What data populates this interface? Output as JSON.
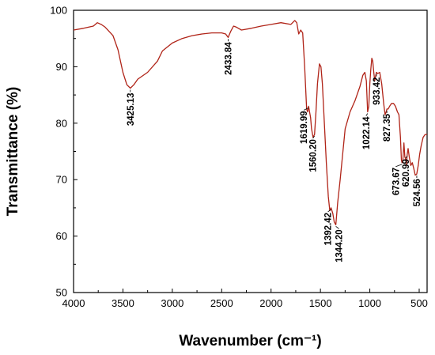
{
  "chart_data": {
    "type": "line",
    "xlabel": "Wavenumber (cm⁻¹)",
    "ylabel": "Transmittance (%)",
    "xlim": [
      4000,
      420
    ],
    "x_reversed": true,
    "ylim": [
      50,
      100
    ],
    "xticks": [
      "4000",
      "3500",
      "3000",
      "2500",
      "2000",
      "1500",
      "1000",
      "500"
    ],
    "yticks": [
      "50",
      "60",
      "70",
      "80",
      "90",
      "100"
    ],
    "grid": false,
    "line_color": "#b02418",
    "series": [
      {
        "x": [
          4000,
          3900,
          3800,
          3760,
          3720,
          3680,
          3600,
          3550,
          3500,
          3460,
          3425,
          3390,
          3350,
          3250,
          3150,
          3100,
          3000,
          2900,
          2800,
          2700,
          2600,
          2500,
          2460,
          2434,
          2410,
          2380,
          2350,
          2300,
          2200,
          2100,
          2000,
          1900,
          1800,
          1760,
          1740,
          1720,
          1700,
          1680,
          1660,
          1640,
          1630,
          1620,
          1610,
          1600,
          1590,
          1575,
          1560,
          1545,
          1530,
          1510,
          1495,
          1480,
          1460,
          1440,
          1420,
          1405,
          1392,
          1375,
          1360,
          1344,
          1325,
          1300,
          1250,
          1200,
          1150,
          1100,
          1070,
          1050,
          1035,
          1022,
          1010,
          1000,
          990,
          980,
          970,
          960,
          950,
          945,
          933,
          920,
          900,
          880,
          860,
          845,
          835,
          827,
          815,
          800,
          780,
          760,
          740,
          720,
          705,
          690,
          680,
          674,
          665,
          655,
          645,
          635,
          630,
          621,
          612,
          600,
          585,
          570,
          555,
          540,
          525,
          510,
          495,
          480,
          460,
          440,
          420
        ],
        "y": [
          96.5,
          96.8,
          97.2,
          97.8,
          97.5,
          97.0,
          95.5,
          93.0,
          89.0,
          86.8,
          86.2,
          86.8,
          87.8,
          89.0,
          91.0,
          92.8,
          94.2,
          95.0,
          95.5,
          95.8,
          96.0,
          96.0,
          95.8,
          95.2,
          96.2,
          97.2,
          97.0,
          96.5,
          96.8,
          97.2,
          97.5,
          97.8,
          97.5,
          98.2,
          97.8,
          95.8,
          96.5,
          96.0,
          90.0,
          82.5,
          82.0,
          83.0,
          82.0,
          81.0,
          79.0,
          77.5,
          78.0,
          82.0,
          87.0,
          90.5,
          90.0,
          87.0,
          80.0,
          73.0,
          67.0,
          64.5,
          65.0,
          64.0,
          62.5,
          62.0,
          66.0,
          70.0,
          79.0,
          82.0,
          84.0,
          86.5,
          88.5,
          89.0,
          87.5,
          82.0,
          83.0,
          87.0,
          89.5,
          91.5,
          91.0,
          89.0,
          87.5,
          88.0,
          89.0,
          88.8,
          89.0,
          87.0,
          83.5,
          81.5,
          82.0,
          82.5,
          82.5,
          83.0,
          83.5,
          83.5,
          83.0,
          82.0,
          81.5,
          77.5,
          73.5,
          73.0,
          73.5,
          76.5,
          74.0,
          73.5,
          72.5,
          74.5,
          75.5,
          74.0,
          72.5,
          73.0,
          72.0,
          70.8,
          71.0,
          72.5,
          74.5,
          76.0,
          77.5,
          78.0,
          78.0
        ]
      }
    ],
    "annotations": [
      {
        "text": "3425.13",
        "x": 3425.13,
        "y": 86.2
      },
      {
        "text": "2433.84",
        "x": 2433.84,
        "y": 95.2
      },
      {
        "text": "1619.99",
        "x": 1619.99,
        "y": 83.0
      },
      {
        "text": "1560.20",
        "x": 1560.2,
        "y": 78.0
      },
      {
        "text": "1392.42",
        "x": 1392.42,
        "y": 65.0
      },
      {
        "text": "1344.20",
        "x": 1344.2,
        "y": 62.0
      },
      {
        "text": "1022.14",
        "x": 1022.14,
        "y": 82.0
      },
      {
        "text": "933.42",
        "x": 933.42,
        "y": 89.0
      },
      {
        "text": "827.35",
        "x": 827.35,
        "y": 82.5
      },
      {
        "text": "673.67",
        "x": 673.67,
        "y": 73.0
      },
      {
        "text": "620.99",
        "x": 620.99,
        "y": 74.5
      },
      {
        "text": "524.56",
        "x": 524.56,
        "y": 71.0
      }
    ]
  }
}
